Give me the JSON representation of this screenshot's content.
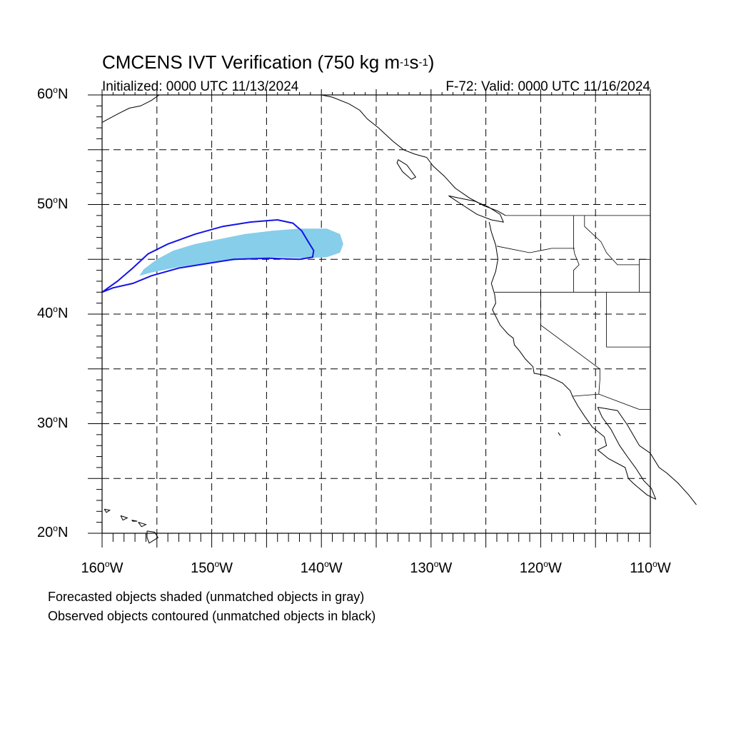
{
  "title": {
    "prefix": "CMCENS IVT Verification (750 kg m",
    "exp1": "-1",
    "mid": "s",
    "exp2": "-1",
    "suffix": ")"
  },
  "subtitle_left": "Initialized: 0000 UTC 11/13/2024",
  "subtitle_right": "F-72: Valid: 0000 UTC 11/16/2024",
  "notes": [
    "Forecasted objects shaded (unmatched objects in gray)",
    "Observed objects contoured (unmatched objects in black)"
  ],
  "axes": {
    "lon_range": [
      -160,
      -110
    ],
    "lat_range": [
      20,
      60
    ],
    "lat_labels": [
      {
        "value": 60,
        "text": "60",
        "hemi": "N"
      },
      {
        "value": 50,
        "text": "50",
        "hemi": "N"
      },
      {
        "value": 40,
        "text": "40",
        "hemi": "N"
      },
      {
        "value": 30,
        "text": "30",
        "hemi": "N"
      },
      {
        "value": 20,
        "text": "20",
        "hemi": "N"
      }
    ],
    "lon_labels": [
      {
        "value": -160,
        "text": "160",
        "hemi": "W"
      },
      {
        "value": -150,
        "text": "150",
        "hemi": "W"
      },
      {
        "value": -140,
        "text": "140",
        "hemi": "W"
      },
      {
        "value": -130,
        "text": "130",
        "hemi": "W"
      },
      {
        "value": -120,
        "text": "120",
        "hemi": "W"
      },
      {
        "value": -110,
        "text": "110",
        "hemi": "W"
      }
    ],
    "gridlines": "dashed, every 5 degrees"
  },
  "objects": {
    "forecast_color": "#87ceea",
    "observed_color": "#1414e6",
    "forecast_object": [
      [
        -156.6,
        43.5
      ],
      [
        -156.2,
        44.1
      ],
      [
        -155.0,
        45.0
      ],
      [
        -153.5,
        45.8
      ],
      [
        -151.5,
        46.4
      ],
      [
        -149.5,
        46.8
      ],
      [
        -147.0,
        47.3
      ],
      [
        -144.5,
        47.6
      ],
      [
        -142.0,
        47.8
      ],
      [
        -139.5,
        47.8
      ],
      [
        -138.3,
        47.3
      ],
      [
        -138.0,
        46.4
      ],
      [
        -138.3,
        45.6
      ],
      [
        -139.5,
        45.2
      ],
      [
        -141.5,
        45.1
      ],
      [
        -144.0,
        45.2
      ],
      [
        -147.0,
        45.0
      ],
      [
        -150.0,
        44.7
      ],
      [
        -153.0,
        44.3
      ],
      [
        -155.5,
        43.8
      ],
      [
        -156.6,
        43.5
      ]
    ],
    "observed_object": [
      [
        -160.0,
        42.0
      ],
      [
        -158.6,
        43.0
      ],
      [
        -157.2,
        44.2
      ],
      [
        -155.8,
        45.5
      ],
      [
        -154.0,
        46.4
      ],
      [
        -151.5,
        47.3
      ],
      [
        -149.0,
        48.0
      ],
      [
        -146.5,
        48.4
      ],
      [
        -144.0,
        48.6
      ],
      [
        -142.6,
        48.3
      ],
      [
        -141.8,
        47.6
      ],
      [
        -141.2,
        46.6
      ],
      [
        -140.7,
        45.8
      ],
      [
        -140.8,
        45.2
      ],
      [
        -142.0,
        45.0
      ],
      [
        -144.8,
        45.1
      ],
      [
        -148.0,
        45.0
      ],
      [
        -150.5,
        44.6
      ],
      [
        -153.0,
        44.2
      ],
      [
        -155.5,
        43.5
      ],
      [
        -157.2,
        42.8
      ],
      [
        -159.0,
        42.4
      ],
      [
        -160.0,
        42.0
      ]
    ]
  },
  "coastlines": {
    "alaska_mainland": [
      [
        -160.0,
        57.5
      ],
      [
        -158.5,
        58.3
      ],
      [
        -157.5,
        58.8
      ],
      [
        -156.5,
        59.0
      ],
      [
        -155.5,
        59.5
      ],
      [
        -154.8,
        60.0
      ]
    ],
    "alaska_panhandle": [
      [
        -140.0,
        60.0
      ],
      [
        -139.0,
        59.8
      ],
      [
        -137.5,
        59.2
      ],
      [
        -136.5,
        58.6
      ],
      [
        -135.8,
        57.8
      ],
      [
        -134.8,
        57.0
      ],
      [
        -133.5,
        55.8
      ],
      [
        -132.5,
        55.0
      ],
      [
        -131.5,
        54.6
      ],
      [
        -130.4,
        54.3
      ]
    ],
    "bc_coast": [
      [
        -130.4,
        54.3
      ],
      [
        -129.8,
        53.5
      ],
      [
        -128.8,
        52.6
      ],
      [
        -127.8,
        51.5
      ],
      [
        -126.5,
        50.6
      ],
      [
        -125.2,
        49.9
      ],
      [
        -123.9,
        49.4
      ],
      [
        -123.2,
        49.0
      ]
    ],
    "vancouver_island": [
      [
        -128.4,
        50.8
      ],
      [
        -127.5,
        50.6
      ],
      [
        -126.0,
        50.3
      ],
      [
        -124.8,
        49.8
      ],
      [
        -123.7,
        49.1
      ],
      [
        -123.4,
        48.4
      ],
      [
        -124.5,
        48.6
      ],
      [
        -125.8,
        49.1
      ],
      [
        -127.2,
        50.0
      ],
      [
        -128.4,
        50.8
      ]
    ],
    "haida_gwaii": [
      [
        -133.0,
        54.1
      ],
      [
        -132.2,
        53.6
      ],
      [
        -131.4,
        52.5
      ],
      [
        -131.8,
        52.3
      ],
      [
        -132.6,
        53.0
      ],
      [
        -133.1,
        53.8
      ],
      [
        -133.0,
        54.1
      ]
    ],
    "us_west_coast": [
      [
        -124.7,
        48.4
      ],
      [
        -124.5,
        47.5
      ],
      [
        -124.1,
        46.3
      ],
      [
        -123.9,
        45.0
      ],
      [
        -124.1,
        43.9
      ],
      [
        -124.5,
        42.8
      ],
      [
        -124.2,
        41.8
      ],
      [
        -124.1,
        41.0
      ],
      [
        -124.4,
        40.4
      ],
      [
        -123.7,
        39.0
      ],
      [
        -123.0,
        38.2
      ],
      [
        -122.5,
        37.8
      ],
      [
        -122.4,
        37.2
      ],
      [
        -121.9,
        36.6
      ],
      [
        -121.4,
        35.9
      ],
      [
        -120.7,
        35.2
      ],
      [
        -120.6,
        34.6
      ],
      [
        -119.5,
        34.4
      ],
      [
        -118.6,
        34.0
      ],
      [
        -118.0,
        33.7
      ],
      [
        -117.3,
        33.0
      ],
      [
        -117.1,
        32.5
      ]
    ],
    "baja_pacific": [
      [
        -117.1,
        32.5
      ],
      [
        -116.6,
        31.6
      ],
      [
        -116.0,
        30.7
      ],
      [
        -115.3,
        29.7
      ],
      [
        -114.2,
        28.8
      ],
      [
        -114.0,
        28.0
      ],
      [
        -114.8,
        27.6
      ],
      [
        -113.8,
        26.8
      ],
      [
        -112.3,
        26.0
      ],
      [
        -112.0,
        25.0
      ],
      [
        -111.5,
        24.5
      ],
      [
        -110.3,
        23.5
      ],
      [
        -109.5,
        23.1
      ]
    ],
    "baja_gulf": [
      [
        -109.5,
        23.1
      ],
      [
        -109.9,
        24.1
      ],
      [
        -110.6,
        24.8
      ],
      [
        -111.3,
        25.9
      ],
      [
        -112.1,
        27.0
      ],
      [
        -112.8,
        28.0
      ],
      [
        -113.6,
        29.5
      ],
      [
        -114.4,
        30.6
      ],
      [
        -114.8,
        31.5
      ]
    ],
    "mexico_mainland": [
      [
        -114.8,
        31.5
      ],
      [
        -113.0,
        31.2
      ],
      [
        -112.1,
        29.9
      ],
      [
        -111.0,
        28.0
      ],
      [
        -110.0,
        27.3
      ],
      [
        -109.2,
        26.0
      ],
      [
        -108.5,
        25.5
      ],
      [
        -107.5,
        24.6
      ],
      [
        -106.5,
        23.5
      ],
      [
        -105.8,
        22.6
      ]
    ],
    "hawaii_big": [
      [
        -155.9,
        20.2
      ],
      [
        -155.2,
        20.1
      ],
      [
        -154.9,
        19.6
      ],
      [
        -155.7,
        19.1
      ],
      [
        -155.9,
        19.6
      ],
      [
        -155.9,
        20.2
      ]
    ],
    "hawaii_maui": [
      [
        -156.7,
        21.0
      ],
      [
        -156.0,
        20.8
      ],
      [
        -156.4,
        20.6
      ],
      [
        -156.7,
        21.0
      ]
    ],
    "hawaii_oahu": [
      [
        -158.3,
        21.6
      ],
      [
        -157.7,
        21.4
      ],
      [
        -158.1,
        21.2
      ],
      [
        -158.3,
        21.6
      ]
    ],
    "hawaii_kauai": [
      [
        -159.8,
        22.2
      ],
      [
        -159.3,
        22.1
      ],
      [
        -159.6,
        21.9
      ],
      [
        -159.8,
        22.2
      ]
    ],
    "hawaii_molokai": [
      [
        -157.3,
        21.2
      ],
      [
        -156.8,
        21.1
      ],
      [
        -157.2,
        21.1
      ],
      [
        -157.3,
        21.2
      ]
    ],
    "nw_mexico_islands": [
      [
        -118.4,
        29.2
      ],
      [
        -118.2,
        28.9
      ],
      [
        -118.4,
        29.2
      ]
    ]
  },
  "boundaries": {
    "us_canada": [
      [
        -123.2,
        49.0
      ],
      [
        -110.0,
        49.0
      ]
    ],
    "wa_or": [
      [
        -124.0,
        46.2
      ],
      [
        -121.0,
        45.6
      ],
      [
        -119.0,
        46.0
      ],
      [
        -116.9,
        46.0
      ]
    ],
    "or_ca_nv_id": [
      [
        -124.2,
        42.0
      ],
      [
        -110.0,
        42.0
      ]
    ],
    "idaho_west": [
      [
        -117.0,
        49.0
      ],
      [
        -117.0,
        46.0
      ],
      [
        -116.9,
        45.5
      ],
      [
        -116.5,
        44.5
      ],
      [
        -117.0,
        44.0
      ],
      [
        -117.0,
        42.0
      ]
    ],
    "idaho_east": [
      [
        -116.0,
        49.0
      ],
      [
        -116.0,
        48.0
      ],
      [
        -114.5,
        46.6
      ],
      [
        -114.0,
        45.6
      ],
      [
        -113.0,
        44.5
      ],
      [
        -111.0,
        44.5
      ],
      [
        -111.0,
        42.0
      ]
    ],
    "ca_nv": [
      [
        -120.0,
        42.0
      ],
      [
        -120.0,
        39.0
      ],
      [
        -114.6,
        35.0
      ]
    ],
    "nv_ut_az": [
      [
        -114.0,
        42.0
      ],
      [
        -114.0,
        37.0
      ],
      [
        -110.0,
        37.0
      ]
    ],
    "az_ca": [
      [
        -114.6,
        35.0
      ],
      [
        -114.6,
        34.0
      ],
      [
        -114.7,
        32.7
      ]
    ],
    "us_mexico": [
      [
        -117.1,
        32.5
      ],
      [
        -114.7,
        32.7
      ],
      [
        -111.0,
        31.3
      ],
      [
        -110.0,
        31.3
      ]
    ],
    "az_state": [
      [
        -110.0,
        37.0
      ],
      [
        -110.0,
        31.3
      ]
    ],
    "wy_line": [
      [
        -111.0,
        45.0
      ],
      [
        -110.0,
        45.0
      ]
    ],
    "mt_id": [
      [
        -111.0,
        45.0
      ],
      [
        -111.0,
        44.5
      ]
    ]
  }
}
